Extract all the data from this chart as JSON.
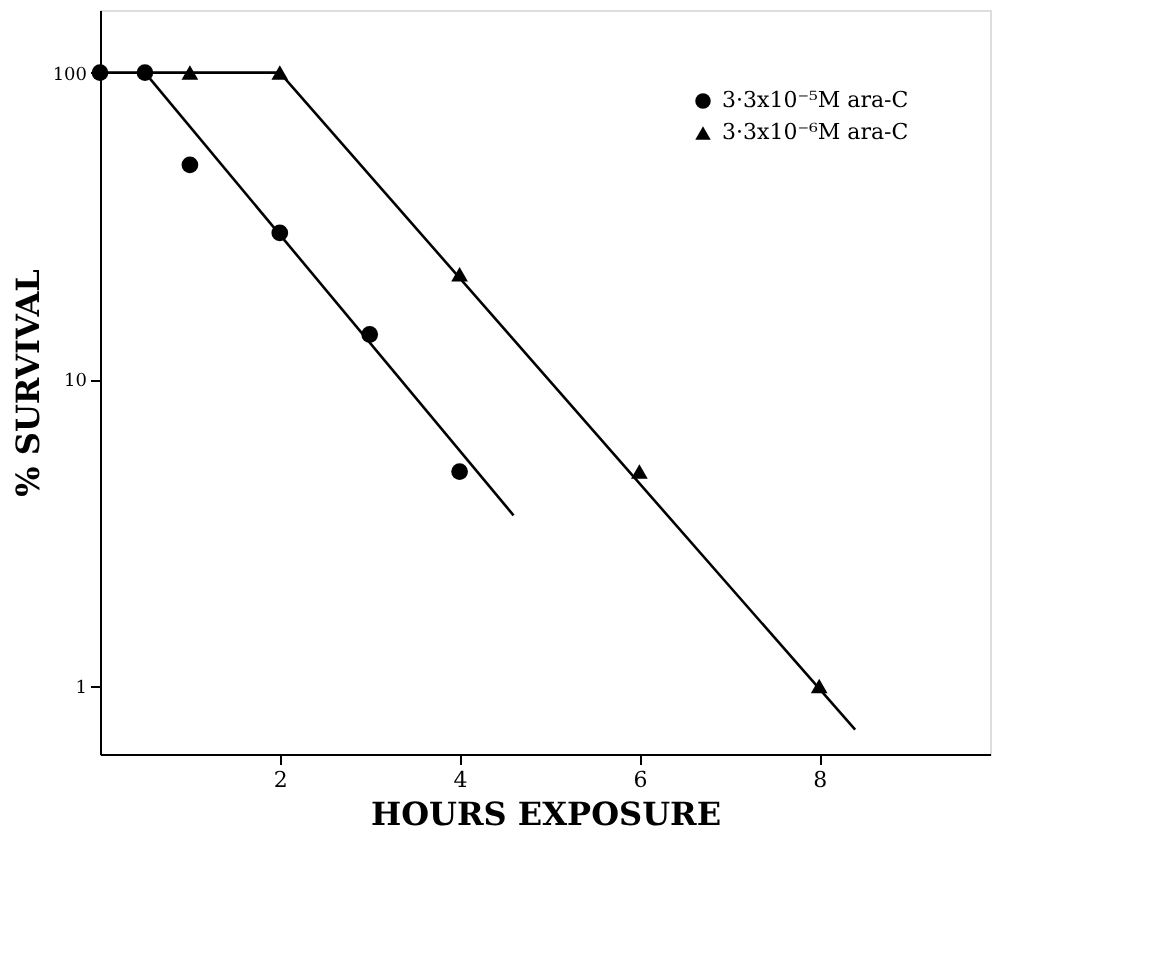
{
  "chart_data": {
    "type": "scatter",
    "xlabel": "HOURS EXPOSURE",
    "ylabel": "% SURVIVAL",
    "xlim": [
      0,
      9.9
    ],
    "xticks": [
      2,
      4,
      6,
      8
    ],
    "ylim": [
      0.6,
      160
    ],
    "yticks": [
      1,
      10,
      100
    ],
    "log": "y",
    "grid": false,
    "legend": "top right",
    "series": [
      {
        "name": "3·3x10⁻⁵M ara-C",
        "color": "#000000",
        "marker": "circle",
        "x": [
          0,
          0.5,
          1,
          2,
          3,
          4
        ],
        "values": [
          100,
          100,
          50,
          30,
          14,
          5
        ]
      },
      {
        "name": "3·3x10⁻⁶M ara-C",
        "color": "#000000",
        "marker": "triangle",
        "x": [
          1,
          2,
          4,
          6,
          8
        ],
        "values": [
          100,
          100,
          22,
          5,
          1
        ]
      },
      {
        "type": "line",
        "color": "#000000",
        "marker": "none",
        "x": [
          0.5,
          4.6
        ],
        "values": [
          100,
          3.6
        ]
      },
      {
        "type": "line",
        "color": "#000000",
        "marker": "none",
        "x": [
          0,
          2,
          8.4
        ],
        "values": [
          100,
          100,
          0.72
        ]
      }
    ]
  }
}
